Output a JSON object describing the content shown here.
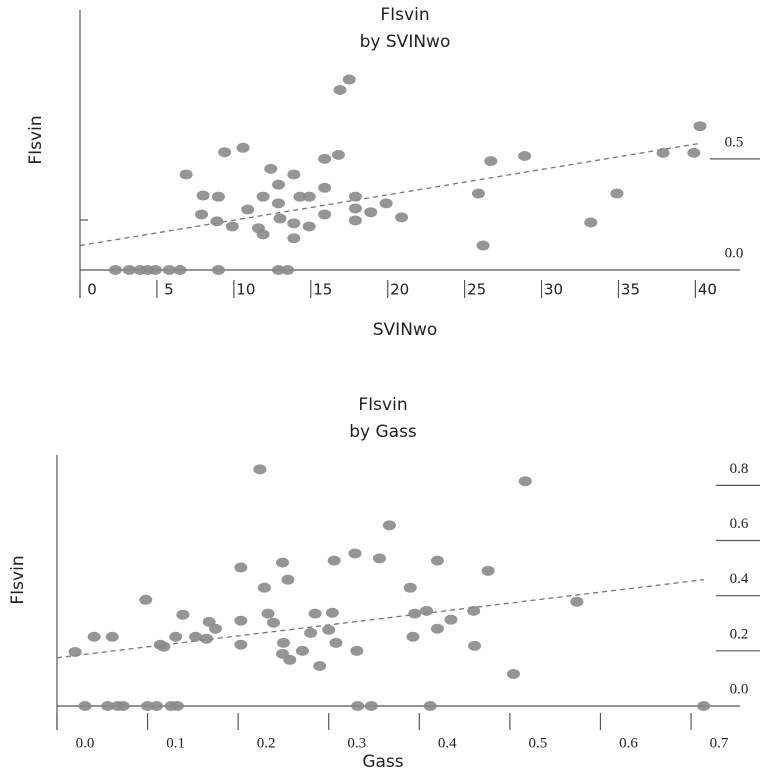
{
  "chart_data": [
    {
      "type": "scatter",
      "title": "FIsvin",
      "subtitle": "by SVINwo",
      "x_label": "SVINwo",
      "y_label": "FIsvin",
      "color": "#8a8a8a",
      "x": [
        17.5,
        16.9,
        40.3,
        39.9,
        37.9,
        28.9,
        26.7,
        16.8,
        15.9,
        10.6,
        9.4,
        6.9,
        12.4,
        13.9,
        12.9,
        8.0,
        9.0,
        11.9,
        14.3,
        15.9,
        14.9,
        17.9,
        19.9,
        34.9,
        25.9,
        7.9,
        10.9,
        12.9,
        13.0,
        13.9,
        15.9,
        17.9,
        18.9,
        20.9,
        17.9,
        8.9,
        9.9,
        11.6,
        11.9,
        14.9,
        13.9,
        33.2,
        26.2,
        2.3,
        3.2,
        3.9,
        4.4,
        4.9,
        5.8,
        6.5,
        9.0,
        12.9,
        13.5
      ],
      "values": [
        0.857,
        0.81,
        0.647,
        0.527,
        0.527,
        0.513,
        0.49,
        0.518,
        0.5,
        0.55,
        0.53,
        0.43,
        0.455,
        0.43,
        0.384,
        0.335,
        0.33,
        0.33,
        0.33,
        0.37,
        0.33,
        0.33,
        0.3,
        0.344,
        0.344,
        0.25,
        0.272,
        0.3,
        0.232,
        0.21,
        0.25,
        0.277,
        0.26,
        0.237,
        0.223,
        0.219,
        0.196,
        0.188,
        0.16,
        0.196,
        0.143,
        0.214,
        0.11,
        0,
        0,
        0,
        0,
        0,
        0,
        0,
        0,
        0,
        0
      ],
      "trendline": {
        "x": [
          0,
          40.3
        ],
        "y": [
          0.11,
          0.57
        ]
      },
      "xlim": [
        0,
        41.6
      ],
      "ylim": [
        0,
        1.17
      ],
      "xticks": [
        0,
        5,
        10,
        15,
        20,
        25,
        30,
        35,
        40
      ],
      "yticks": [
        {
          "value": 0,
          "label": "0.0"
        },
        0.5
      ]
    },
    {
      "type": "scatter",
      "title": "FIsvin",
      "subtitle": "by Gass",
      "x_label": "Gass",
      "y_label": "FIsvin",
      "color": "#8a8a8a",
      "x": [
        0.224,
        0.517,
        0.367,
        0.329,
        0.42,
        0.306,
        0.356,
        0.203,
        0.249,
        0.476,
        0.255,
        0.229,
        0.39,
        0.098,
        0.574,
        0.139,
        0.233,
        0.285,
        0.304,
        0.395,
        0.408,
        0.46,
        0.168,
        0.203,
        0.239,
        0.435,
        0.175,
        0.041,
        0.061,
        0.131,
        0.153,
        0.165,
        0.28,
        0.3,
        0.393,
        0.42,
        0.114,
        0.118,
        0.203,
        0.25,
        0.308,
        0.02,
        0.249,
        0.257,
        0.271,
        0.331,
        0.461,
        0.29,
        0.504,
        0.031,
        0.056,
        0.067,
        0.073,
        0.1,
        0.11,
        0.126,
        0.133,
        0.332,
        0.347,
        0.412,
        0.714
      ],
      "values": [
        0.858,
        0.815,
        0.655,
        0.553,
        0.527,
        0.527,
        0.535,
        0.502,
        0.52,
        0.49,
        0.458,
        0.429,
        0.429,
        0.385,
        0.378,
        0.331,
        0.335,
        0.335,
        0.338,
        0.335,
        0.345,
        0.345,
        0.305,
        0.309,
        0.302,
        0.313,
        0.28,
        0.251,
        0.251,
        0.251,
        0.251,
        0.244,
        0.265,
        0.276,
        0.251,
        0.28,
        0.222,
        0.215,
        0.222,
        0.229,
        0.229,
        0.196,
        0.189,
        0.167,
        0.2,
        0.2,
        0.218,
        0.145,
        0.116,
        0,
        0,
        0,
        0,
        0,
        0,
        0,
        0,
        0,
        0,
        0,
        0
      ],
      "trendline": {
        "x": [
          0,
          0.714
        ],
        "y": [
          0.175,
          0.458
        ]
      },
      "xlim": [
        0,
        0.732
      ],
      "ylim": [
        0,
        0.91
      ],
      "xticks": [
        {
          "value": 0,
          "label": "0.0"
        },
        0.1,
        0.2,
        0.3,
        0.4,
        0.5,
        0.6,
        0.7
      ],
      "yticks": [
        {
          "value": 0,
          "label": "0.0"
        },
        0.2,
        0.4,
        0.6,
        0.8
      ]
    }
  ]
}
